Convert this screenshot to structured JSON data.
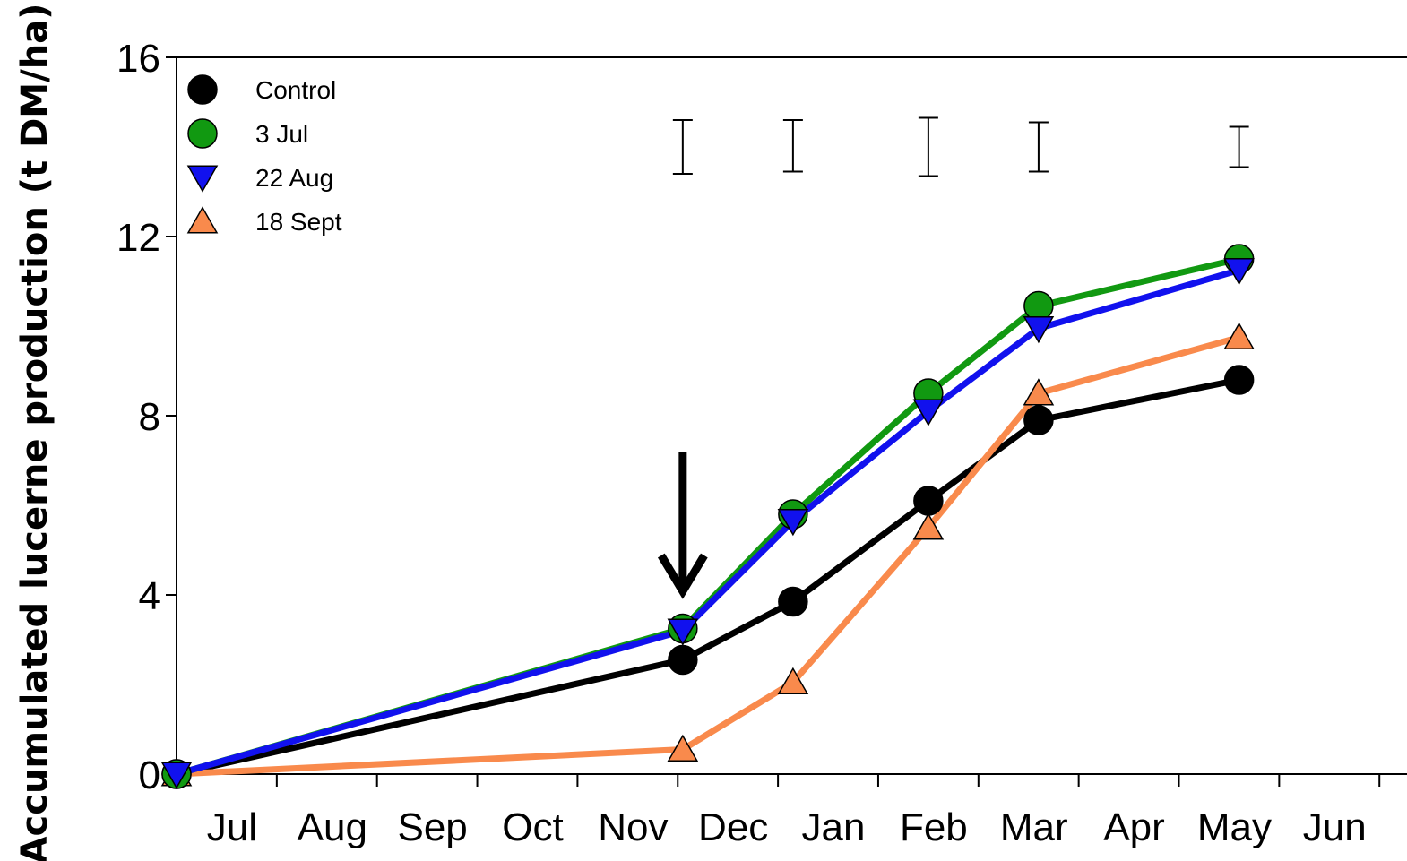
{
  "chart_data": {
    "type": "line",
    "title": "",
    "xlabel": "",
    "ylabel": "Accumulated lucerne production (t DM/ha)",
    "ylim": [
      0,
      16
    ],
    "yticks": [
      "0",
      "4",
      "8",
      "12",
      "16"
    ],
    "x_domain_months": [
      0,
      12
    ],
    "xticks": [
      {
        "label": "Jul",
        "pos": 0.5
      },
      {
        "label": "Aug",
        "pos": 1.5
      },
      {
        "label": "Sep",
        "pos": 2.5
      },
      {
        "label": "Oct",
        "pos": 3.5
      },
      {
        "label": "Nov",
        "pos": 4.5
      },
      {
        "label": "Dec",
        "pos": 5.5
      },
      {
        "label": "Jan",
        "pos": 6.5
      },
      {
        "label": "Feb",
        "pos": 7.5
      },
      {
        "label": "Mar",
        "pos": 8.5
      },
      {
        "label": "Apr",
        "pos": 9.5
      },
      {
        "label": "May",
        "pos": 10.5
      },
      {
        "label": "Jun",
        "pos": 11.5
      }
    ],
    "x": [
      0,
      5.05,
      6.15,
      7.5,
      8.6,
      10.6
    ],
    "series": [
      {
        "name": "Control",
        "marker": "circle",
        "line_color": "#000000",
        "marker_fill": "#000000",
        "values": [
          0,
          2.55,
          3.85,
          6.1,
          7.9,
          8.8
        ]
      },
      {
        "name": "3 Jul",
        "marker": "circle",
        "line_color": "#119911",
        "marker_fill": "#119911",
        "values": [
          0,
          3.25,
          5.8,
          8.5,
          10.45,
          11.5
        ]
      },
      {
        "name": "22 Aug",
        "marker": "triangle-down",
        "line_color": "#1111ee",
        "marker_fill": "#1111ee",
        "values": [
          0,
          3.2,
          5.65,
          8.1,
          9.95,
          11.25
        ]
      },
      {
        "name": "18 Sept",
        "marker": "triangle-up",
        "line_color": "#f98a4c",
        "marker_fill": "#f98a4c",
        "values": [
          0,
          0.55,
          2.05,
          5.5,
          8.5,
          9.75
        ]
      }
    ],
    "error_bars": [
      {
        "x": 5.05,
        "low": 13.4,
        "high": 14.6
      },
      {
        "x": 6.15,
        "low": 13.45,
        "high": 14.6
      },
      {
        "x": 7.5,
        "low": 13.35,
        "high": 14.65
      },
      {
        "x": 8.6,
        "low": 13.45,
        "high": 14.55
      },
      {
        "x": 10.6,
        "low": 13.55,
        "high": 14.45
      }
    ],
    "arrow": {
      "x": 5.05,
      "from_y": 7.2,
      "to_y": 4.0
    },
    "legend": "top-left",
    "grid": false
  }
}
